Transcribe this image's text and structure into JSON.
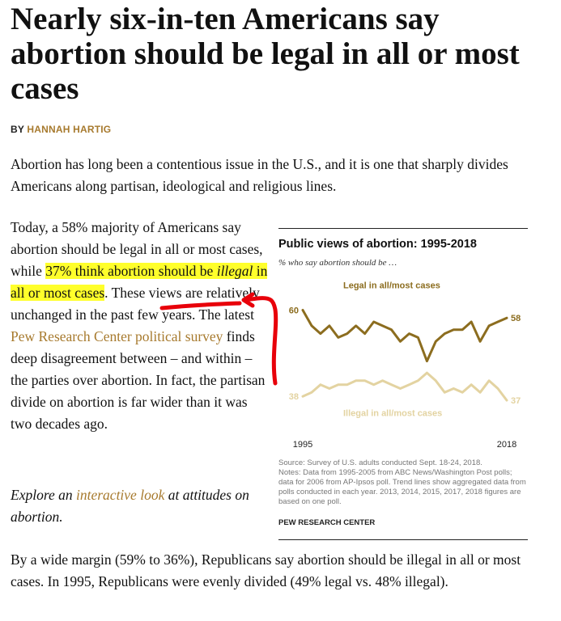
{
  "article": {
    "headline": "Nearly six-in-ten Americans say abortion should be legal in all or most cases",
    "byline_prefix": "BY ",
    "byline_author": "HANNAH HARTIG",
    "intro": "Abortion has long been a contentious issue in the U.S., and it is one that sharply divides Americans along partisan, ideological and religious lines.",
    "body_left": {
      "part1": "Today, a 58% majority of Americans say abortion should be legal in all or most cases, while ",
      "highlight_a": "37% think abortion should be ",
      "highlight_illegal": "illegal",
      "highlight_b": " in all or most cases",
      "part2": ". These views are relatively unchanged in the past few years. The latest ",
      "link_text": "Pew Research Center political survey",
      "part3": " finds deep disagreement between – and within – the parties over abortion. In fact, the partisan divide on abortion is far wider than it was two decades ago."
    },
    "explore": {
      "prefix": "Explore an ",
      "link_text": "interactive look",
      "suffix": " at attitudes on abortion."
    },
    "closing": "By a wide margin (59% to 36%), Republicans say abortion should be illegal in all or most cases. In 1995, Republicans were evenly divided (49% legal vs. 48% illegal)."
  },
  "chart": {
    "title": "Public views of abortion: 1995-2018",
    "subtitle": "% who say abortion should be …",
    "source": "Source: Survey of U.S. adults conducted Sept. 18-24, 2018.",
    "notes": "Notes: Data from 1995-2005 from ABC News/Washington Post polls; data for 2006 from AP-Ipsos poll. Trend lines show aggregated data from polls conducted in each year. 2013, 2014, 2015, 2017, 2018 figures are based on one poll.",
    "brand": "PEW RESEARCH CENTER",
    "colors": {
      "legal": "#8c6d1f",
      "illegal": "#e3d3a1",
      "annotation": "#e8000a",
      "highlight": "#ffff2b",
      "link": "#a77a2e"
    }
  },
  "chart_data": {
    "type": "line",
    "x": [
      1995,
      1996,
      1997,
      1998,
      1999,
      2000,
      2001,
      2002,
      2003,
      2004,
      2005,
      2006,
      2007,
      2008,
      2009,
      2010,
      2011,
      2012,
      2013,
      2014,
      2015,
      2016,
      2017,
      2018
    ],
    "series": [
      {
        "name": "Legal in all/most cases",
        "values": [
          60,
          56,
          54,
          56,
          53,
          54,
          56,
          54,
          57,
          56,
          55,
          52,
          54,
          53,
          47,
          52,
          54,
          55,
          55,
          57,
          52,
          56,
          57,
          58
        ]
      },
      {
        "name": "Illegal in all/most cases",
        "values": [
          38,
          39,
          41,
          40,
          41,
          41,
          42,
          42,
          41,
          42,
          41,
          40,
          41,
          42,
          44,
          42,
          39,
          40,
          39,
          41,
          39,
          42,
          40,
          37
        ]
      }
    ],
    "x_tick_labels": [
      "1995",
      "2018"
    ],
    "start_labels": [
      "60",
      "38"
    ],
    "end_labels": [
      "58",
      "37"
    ],
    "ylim": [
      30,
      70
    ]
  }
}
